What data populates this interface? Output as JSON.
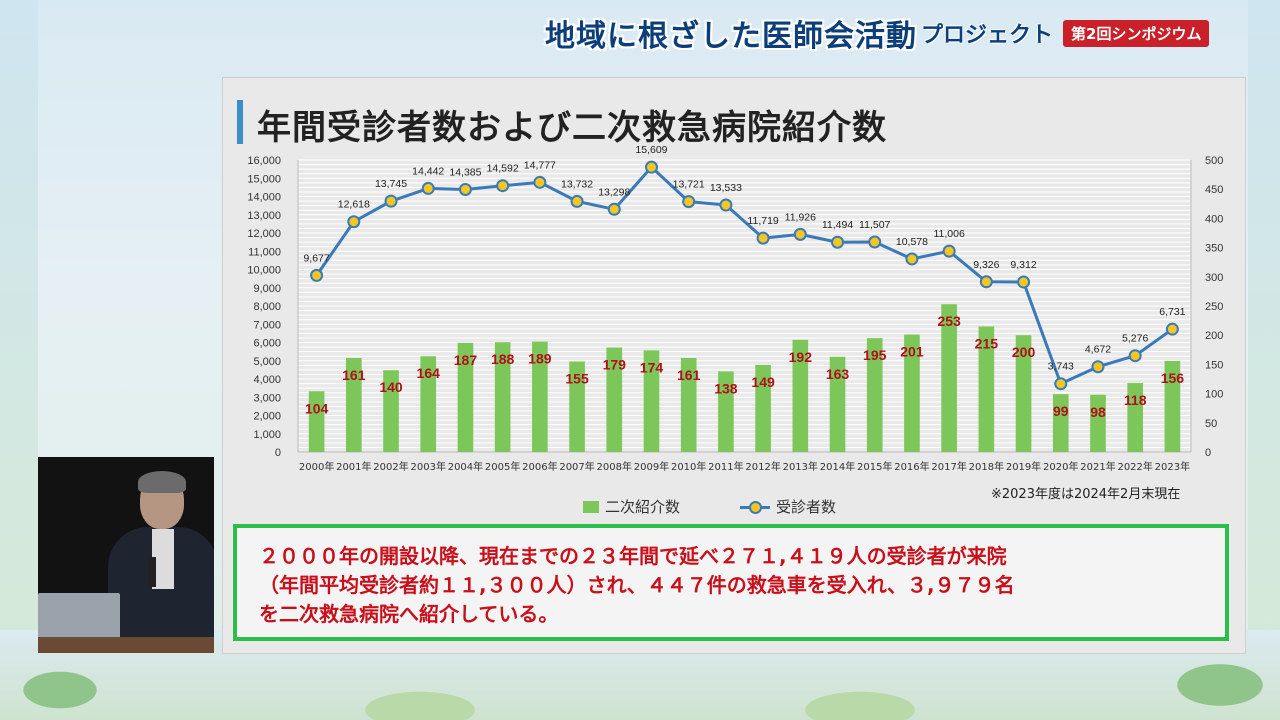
{
  "banner": {
    "title": "地域に根ざした医師会活動",
    "subtitle": "プロジェクト",
    "badge": "第2回シンポジウム"
  },
  "slide": {
    "title": "年間受診者数および二次救急病院紹介数",
    "note": "※2023年度は2024年2月末現在",
    "summary_lines": [
      "２０００年の開設以降、現在までの２３年間で延べ２７１,４１９人の受診者が来院",
      "（年間平均受診者約１１,３００人）され、４４７件の救急車を受入れ、３,９７９名",
      "を二次救急病院へ紹介している。"
    ]
  },
  "colors": {
    "bar": "#7dc65a",
    "line": "#3a7ab8",
    "marker": "#f3c623",
    "bar_label": "#b0101a",
    "summary_border": "#2bbf4a",
    "summary_text": "#c8101a"
  },
  "chart_data": {
    "type": "bar",
    "categories": [
      "2000年",
      "2001年",
      "2002年",
      "2003年",
      "2004年",
      "2005年",
      "2006年",
      "2007年",
      "2008年",
      "2009年",
      "2010年",
      "2011年",
      "2012年",
      "2013年",
      "2014年",
      "2015年",
      "2016年",
      "2017年",
      "2018年",
      "2019年",
      "2020年",
      "2021年",
      "2022年",
      "2023年"
    ],
    "series": [
      {
        "name": "二次紹介数",
        "type": "bar",
        "axis": "right",
        "values": [
          104,
          161,
          140,
          164,
          187,
          188,
          189,
          155,
          179,
          174,
          161,
          138,
          149,
          192,
          163,
          195,
          201,
          253,
          215,
          200,
          99,
          98,
          118,
          156
        ]
      },
      {
        "name": "受診者数",
        "type": "line",
        "axis": "left",
        "values": [
          9677,
          12618,
          13745,
          14442,
          14385,
          14592,
          14777,
          13732,
          13298,
          15609,
          13721,
          13533,
          11719,
          11926,
          11494,
          11507,
          10578,
          11006,
          9326,
          9312,
          3743,
          4672,
          5276,
          6731
        ],
        "labels": [
          "9,677",
          "12,618",
          "13,745",
          "14,442",
          "14,385",
          "14,592",
          "14,777",
          "13,732",
          "13,298",
          "15,609",
          "13,721",
          "13,533",
          "11,719",
          "11,926",
          "11,494",
          "11,507",
          "10,578",
          "11,006",
          "9,326",
          "9,312",
          "3,743",
          "4,672",
          "5,276",
          "6,731"
        ]
      }
    ],
    "y_left": {
      "min": 0,
      "max": 16000,
      "ticks": [
        "0",
        "1,000",
        "2,000",
        "3,000",
        "4,000",
        "5,000",
        "6,000",
        "7,000",
        "8,000",
        "9,000",
        "10,000",
        "11,000",
        "12,000",
        "13,000",
        "14,000",
        "15,000",
        "16,000"
      ]
    },
    "y_right": {
      "min": 0,
      "max": 500,
      "ticks": [
        "0",
        "50",
        "100",
        "150",
        "200",
        "250",
        "300",
        "350",
        "400",
        "450",
        "500"
      ]
    },
    "legend": [
      "二次紹介数",
      "受診者数"
    ],
    "legend_position": "bottom",
    "grid": true
  }
}
